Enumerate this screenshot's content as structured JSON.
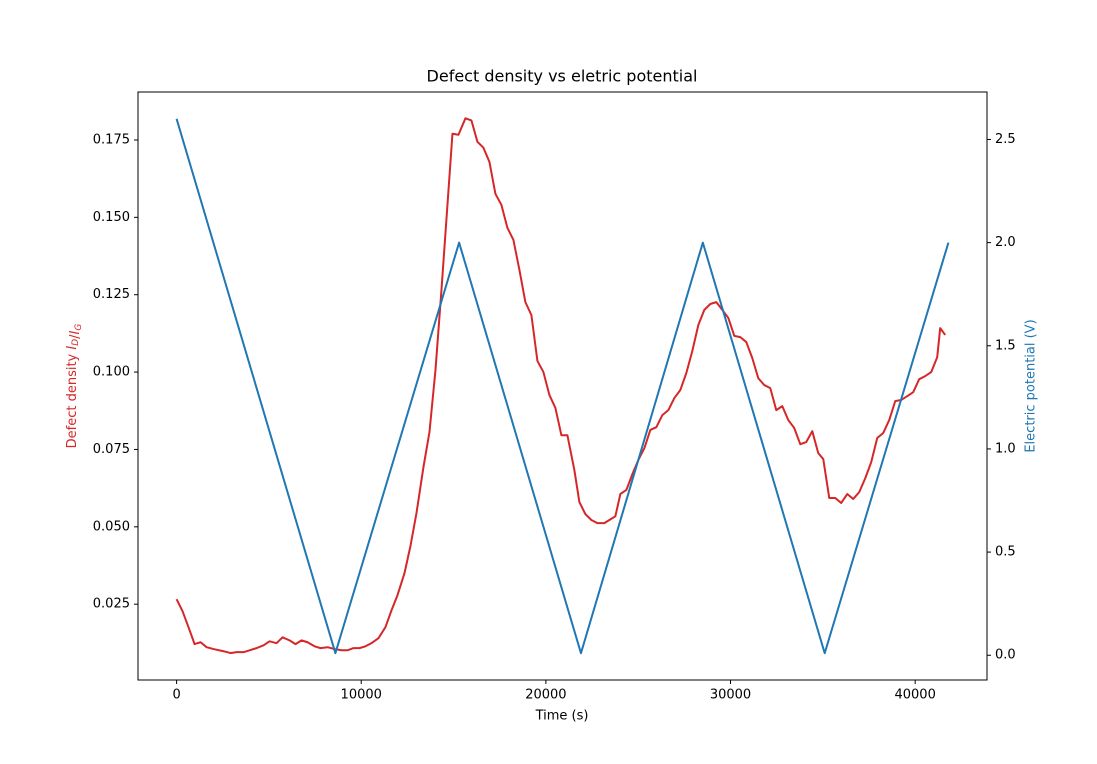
{
  "chart_data": {
    "type": "line",
    "title": "Defect density vs eletric potential",
    "xlabel": "Time (s)",
    "ylabel": "Defect density ID/IG",
    "y2label": "Electric potential (V)",
    "ylabel_color": "#d62728",
    "y2label_color": "#1f77b4",
    "xlim": [
      -2090,
      43890
    ],
    "ylim": [
      0.0005,
      0.1905
    ],
    "y2lim": [
      -0.12,
      2.73
    ],
    "xticks": [
      0,
      10000,
      20000,
      30000,
      40000
    ],
    "yticks": [
      0.025,
      {
        "value": 0.05,
        "label": "0.050"
      },
      0.075,
      {
        "value": 0.1,
        "label": "0.100"
      },
      0.125,
      {
        "value": 0.15,
        "label": "0.150"
      },
      0.175
    ],
    "y2ticks": [
      {
        "value": 0,
        "label": "0.0"
      },
      0.5,
      {
        "value": 1,
        "label": "1.0"
      },
      1.5,
      {
        "value": 2,
        "label": "2.0"
      },
      2.5
    ],
    "grid": false,
    "series": [
      {
        "color": "#d62728",
        "x": [
          0,
          325,
          704,
          975,
          1299,
          1624,
          2003,
          2544,
          2923,
          3248,
          3627,
          3951,
          4330,
          4709,
          5034,
          5413,
          5738,
          6117,
          6442,
          6766,
          7091,
          7470,
          7795,
          8174,
          8553,
          8931,
          9256,
          9581,
          9906,
          10231,
          10555,
          10934,
          11313,
          11638,
          11963,
          12342,
          12666,
          12991,
          13370,
          13695,
          14020,
          14344,
          14669,
          14940,
          15265,
          15644,
          15968,
          16293,
          16618,
          16943,
          17267,
          17592,
          17917,
          18242,
          18567,
          18891,
          19216,
          19541,
          19866,
          20190,
          20515,
          20840,
          21165,
          21544,
          21814,
          22139,
          22464,
          22789,
          23168,
          23438,
          23763,
          24034,
          24359,
          24683,
          25008,
          25333,
          25658,
          25982,
          26307,
          26632,
          26957,
          27281,
          27606,
          27931,
          28256,
          28581,
          28905,
          29230,
          29555,
          29880,
          30205,
          30529,
          30854,
          31179,
          31504,
          31828,
          32153,
          32478,
          32803,
          33128,
          33452,
          33777,
          34102,
          34427,
          34751,
          35022,
          35347,
          35672,
          35996,
          36321,
          36646,
          36971,
          37296,
          37620,
          37945,
          38270,
          38595,
          38919,
          39244,
          39569,
          39894,
          40218,
          40543,
          40868,
          41193,
          41355,
          41626
        ],
        "values": [
          0.0266,
          0.0227,
          0.0166,
          0.0121,
          0.0127,
          0.0111,
          0.0105,
          0.0098,
          0.0092,
          0.0095,
          0.0095,
          0.0101,
          0.0108,
          0.0117,
          0.013,
          0.0124,
          0.0143,
          0.0133,
          0.0121,
          0.0133,
          0.0127,
          0.0114,
          0.0108,
          0.0111,
          0.0105,
          0.0101,
          0.0101,
          0.0108,
          0.0108,
          0.0114,
          0.0124,
          0.014,
          0.0176,
          0.023,
          0.0279,
          0.035,
          0.0438,
          0.0544,
          0.0693,
          0.0806,
          0.1006,
          0.1265,
          0.154,
          0.177,
          0.1767,
          0.182,
          0.1813,
          0.1744,
          0.1725,
          0.1679,
          0.1576,
          0.154,
          0.1466,
          0.1427,
          0.133,
          0.1226,
          0.1184,
          0.1036,
          0.1,
          0.0926,
          0.0884,
          0.0796,
          0.0796,
          0.0683,
          0.058,
          0.0541,
          0.0522,
          0.0512,
          0.0512,
          0.0522,
          0.0534,
          0.0606,
          0.0619,
          0.067,
          0.0716,
          0.0754,
          0.0813,
          0.0822,
          0.0861,
          0.0877,
          0.0916,
          0.0942,
          0.0997,
          0.1068,
          0.1152,
          0.1201,
          0.122,
          0.1226,
          0.1201,
          0.1175,
          0.1117,
          0.1113,
          0.1097,
          0.1045,
          0.098,
          0.0958,
          0.0948,
          0.0877,
          0.089,
          0.0845,
          0.0819,
          0.0767,
          0.0774,
          0.0809,
          0.0738,
          0.0719,
          0.0593,
          0.0593,
          0.0577,
          0.0606,
          0.059,
          0.0612,
          0.0657,
          0.0709,
          0.0787,
          0.0803,
          0.0845,
          0.0906,
          0.091,
          0.0922,
          0.0935,
          0.0977,
          0.0987,
          0.1,
          0.1048,
          0.1142,
          0.112
        ]
      },
      {
        "color": "#1f77b4",
        "axis": "y2",
        "x": [
          0,
          8600,
          15300,
          21900,
          28500,
          35100,
          41800
        ],
        "values": [
          2.6,
          0.01,
          2.0,
          0.01,
          2.0,
          0.01,
          2.0
        ]
      }
    ]
  }
}
